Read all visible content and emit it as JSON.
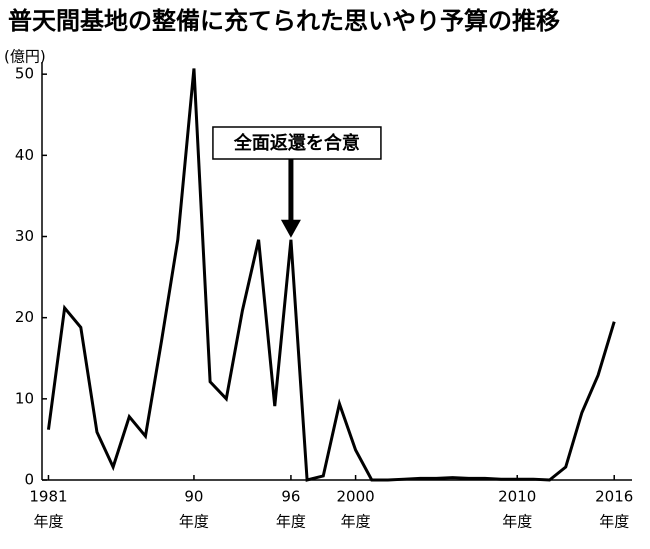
{
  "chart_data": {
    "type": "line",
    "title": "普天間基地の整備に充てられた思いやり予算の推移",
    "ylabel": "(億円)",
    "x_unit_label": "年度",
    "x": [
      1981,
      1982,
      1983,
      1984,
      1985,
      1986,
      1987,
      1988,
      1989,
      1990,
      1991,
      1992,
      1993,
      1994,
      1995,
      1996,
      1997,
      1998,
      1999,
      2000,
      2001,
      2002,
      2003,
      2004,
      2005,
      2006,
      2007,
      2008,
      2009,
      2010,
      2011,
      2012,
      2013,
      2014,
      2015,
      2016
    ],
    "series": [
      {
        "name": "思いやり予算",
        "color": "#000000",
        "values": [
          6.2,
          21.2,
          18.8,
          5.9,
          1.6,
          7.8,
          5.4,
          17.2,
          29.6,
          50.7,
          12.1,
          10.0,
          20.9,
          29.6,
          9.1,
          29.6,
          0,
          0.5,
          9.4,
          3.7,
          0,
          0,
          0.1,
          0.2,
          0.2,
          0.3,
          0.2,
          0.2,
          0.1,
          0.1,
          0.1,
          0,
          1.6,
          8.3,
          12.9,
          19.5
        ]
      }
    ],
    "xlim": [
      1980.6,
      2017.1
    ],
    "xticks": [
      1981,
      {
        "value": 1990,
        "label": "90"
      },
      {
        "value": 1996,
        "label": "96"
      },
      2000,
      2010,
      2016
    ],
    "ylim": [
      0,
      51.5
    ],
    "yticks": [
      0,
      10,
      20,
      30,
      40,
      50
    ],
    "grid": false,
    "annotation": {
      "text": "全面返還を合意",
      "x": 1996
    }
  }
}
